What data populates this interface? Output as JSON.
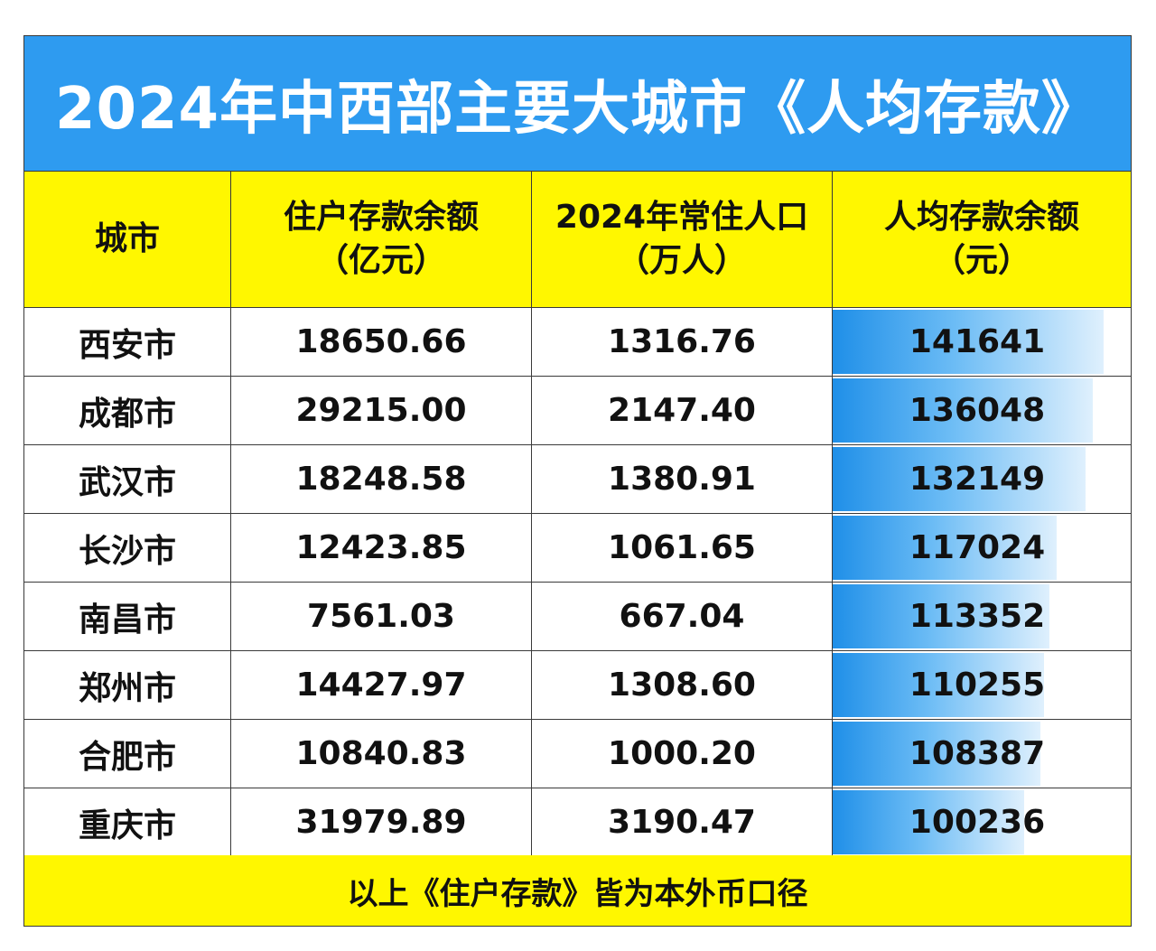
{
  "title": "2024年中西部主要大城市《人均存款》",
  "headers": {
    "city": "城市",
    "deposit_line1": "住户存款余额",
    "deposit_line2": "（亿元）",
    "population_line1": "2024年常住人口",
    "population_line2": "（万人）",
    "per_capita_line1": "人均存款余额",
    "per_capita_line2": "（元）"
  },
  "rows": [
    {
      "city": "西安市",
      "deposit": "18650.66",
      "population": "1316.76",
      "per_capita": "141641",
      "per_capita_value": 141641
    },
    {
      "city": "成都市",
      "deposit": "29215.00",
      "population": "2147.40",
      "per_capita": "136048",
      "per_capita_value": 136048
    },
    {
      "city": "武汉市",
      "deposit": "18248.58",
      "population": "1380.91",
      "per_capita": "132149",
      "per_capita_value": 132149
    },
    {
      "city": "长沙市",
      "deposit": "12423.85",
      "population": "1061.65",
      "per_capita": "117024",
      "per_capita_value": 117024
    },
    {
      "city": "南昌市",
      "deposit": "7561.03",
      "population": "667.04",
      "per_capita": "113352",
      "per_capita_value": 113352
    },
    {
      "city": "郑州市",
      "deposit": "14427.97",
      "population": "1308.60",
      "per_capita": "110255",
      "per_capita_value": 110255
    },
    {
      "city": "合肥市",
      "deposit": "10840.83",
      "population": "1000.20",
      "per_capita": "108387",
      "per_capita_value": 108387
    },
    {
      "city": "重庆市",
      "deposit": "31979.89",
      "population": "3190.47",
      "per_capita": "100236",
      "per_capita_value": 100236
    }
  ],
  "footer": "以上《住户存款》皆为本外币口径",
  "colors": {
    "title_background": "#2e9bf0",
    "header_background": "#fff700",
    "bar_color": "#1f8fe8"
  }
}
